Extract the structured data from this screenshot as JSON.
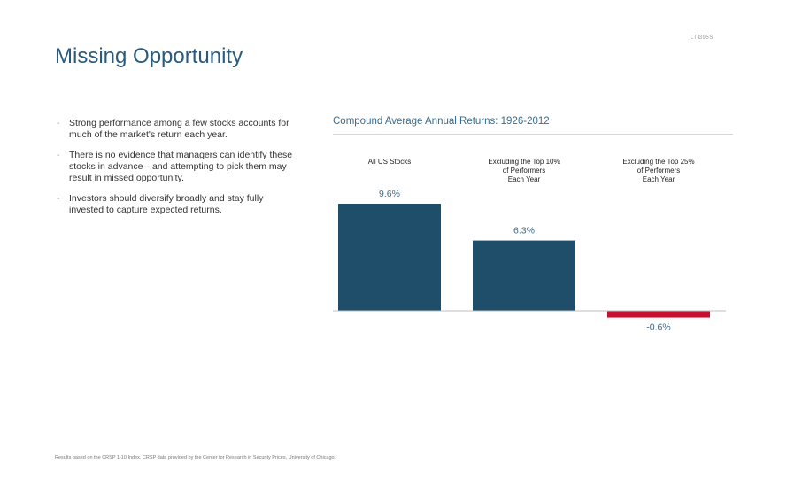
{
  "slide": {
    "code": "LTI395S",
    "title": "Missing Opportunity",
    "bullets": [
      "Strong performance among a few stocks accounts for much of the market's return each year.",
      "There is no evidence that managers can identify these stocks in advance—and attempting to pick them may result in missed opportunity.",
      "Investors should diversify broadly and stay fully invested to capture expected returns."
    ],
    "footnote": "Results based on the CRSP 1-10 Index. CRSP data provided by the Center for Research in Security Prices, University of Chicago."
  },
  "colors": {
    "positive": "#1f4e6b",
    "negative": "#c8102e",
    "title": "#2a5a7c"
  },
  "chart_data": {
    "type": "bar",
    "title": "Compound Average Annual Returns: 1926-2012",
    "categories": [
      "All US Stocks",
      "Excluding the Top 10% of Performers Each Year",
      "Excluding the Top 25% of Performers Each Year"
    ],
    "category_lines": [
      [
        "All US Stocks"
      ],
      [
        "Excluding the Top 10%",
        "of Performers",
        "Each Year"
      ],
      [
        "Excluding the Top 25%",
        "of Performers",
        "Each Year"
      ]
    ],
    "values": [
      9.6,
      6.3,
      -0.6
    ],
    "value_labels": [
      "9.6%",
      "6.3%",
      "-0.6%"
    ],
    "ylim": [
      -1.5,
      12
    ],
    "grid": false,
    "legend": "none"
  }
}
